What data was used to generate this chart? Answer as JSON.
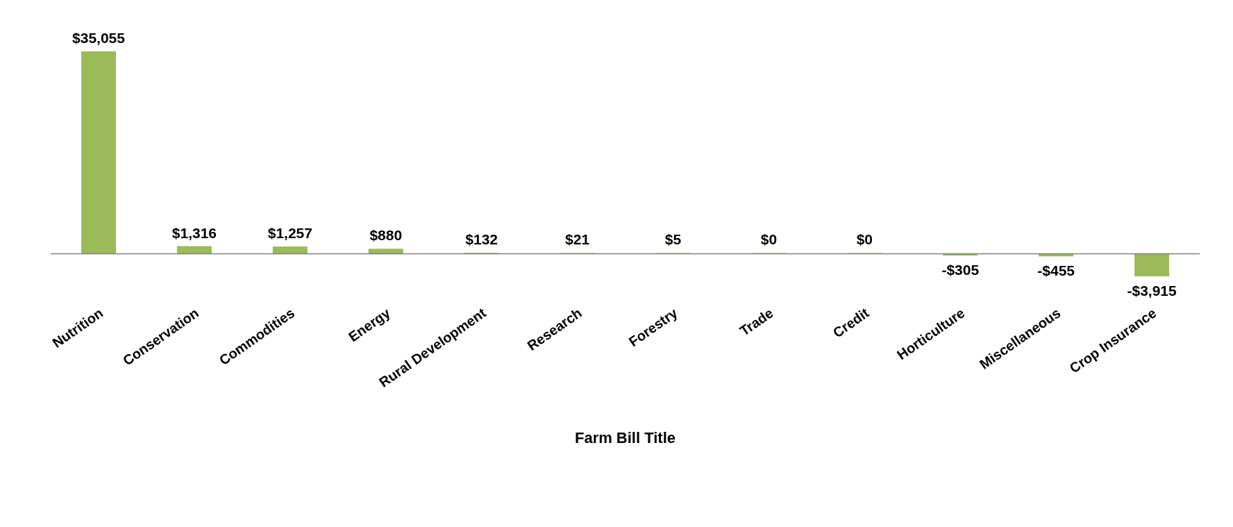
{
  "chart_data": {
    "type": "bar",
    "xlabel": "Farm Bill Title",
    "categories": [
      "Nutrition",
      "Conservation",
      "Commodities",
      "Energy",
      "Rural Development",
      "Research",
      "Forestry",
      "Trade",
      "Credit",
      "Horticulture",
      "Miscellaneous",
      "Crop Insurance"
    ],
    "values": [
      35055,
      1316,
      1257,
      880,
      132,
      21,
      5,
      0,
      0,
      -305,
      -455,
      -3915
    ],
    "value_labels": [
      "$35,055",
      "$1,316",
      "$1,257",
      "$880",
      "$132",
      "$21",
      "$5",
      "$0",
      "$0",
      "-$305",
      "-$455",
      "-$3,915"
    ],
    "color": "#9bbb59",
    "grid": false,
    "legend": false
  }
}
